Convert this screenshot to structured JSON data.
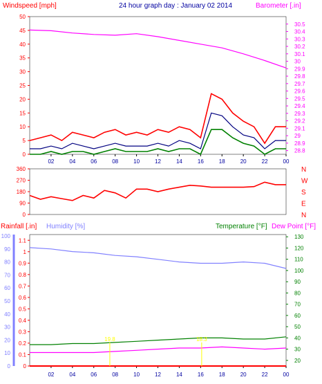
{
  "chart_data": [
    {
      "type": "line",
      "title": "24 hour graph day : January 02 2014",
      "ylabel_left": "Windspeed [mph]",
      "ylabel_right": "Barometer [.in]",
      "x_ticks": [
        "02",
        "04",
        "06",
        "08",
        "10",
        "12",
        "14",
        "16",
        "18",
        "20",
        "22",
        "00"
      ],
      "y_left_ticks": [
        "0",
        "5",
        "10",
        "15",
        "20",
        "25",
        "30",
        "35",
        "40",
        "45",
        "50"
      ],
      "y_right_ticks": [
        "28.8",
        "28.9",
        "29",
        "29.1",
        "29.2",
        "29.3",
        "29.4",
        "29.5",
        "29.6",
        "29.7",
        "29.8",
        "29.9",
        "30",
        "30.1",
        "30.2",
        "30.3",
        "30.4",
        "30.5"
      ],
      "ylim_left": [
        0,
        50
      ],
      "ylim_right": [
        28.75,
        30.6
      ],
      "colors": {
        "gust": "#ff0000",
        "average": "#000080",
        "lull": "#008000",
        "barometer": "#ff00ff"
      },
      "series": [
        {
          "x": [
            0,
            1,
            2,
            3,
            4,
            5,
            6,
            7,
            8,
            9,
            10,
            11,
            12,
            13,
            14,
            15,
            16,
            17,
            18,
            19,
            20,
            21,
            22,
            23,
            24
          ],
          "values": [
            5,
            6,
            7,
            5,
            8,
            7,
            6,
            8,
            9,
            7,
            8,
            7,
            9,
            8,
            10,
            9,
            6,
            22,
            20,
            15,
            12,
            10,
            4,
            10,
            10
          ]
        },
        {
          "x": [
            0,
            1,
            2,
            3,
            4,
            5,
            6,
            7,
            8,
            9,
            10,
            11,
            12,
            13,
            14,
            15,
            16,
            17,
            18,
            19,
            20,
            21,
            22,
            23,
            24
          ],
          "values": [
            2,
            2,
            3,
            2,
            4,
            3,
            2,
            3,
            4,
            3,
            3,
            3,
            4,
            3,
            5,
            4,
            2,
            15,
            14,
            10,
            7,
            6,
            2,
            5,
            5
          ]
        },
        {
          "x": [
            0,
            1,
            2,
            3,
            4,
            5,
            6,
            7,
            8,
            9,
            10,
            11,
            12,
            13,
            14,
            15,
            16,
            17,
            18,
            19,
            20,
            21,
            22,
            23,
            24
          ],
          "values": [
            0,
            0,
            1,
            0,
            1,
            1,
            0,
            1,
            2,
            1,
            1,
            1,
            2,
            1,
            2,
            2,
            0,
            9,
            9,
            6,
            4,
            3,
            0,
            2,
            2
          ]
        },
        {
          "x": [
            0,
            2,
            4,
            6,
            8,
            10,
            12,
            14,
            16,
            18,
            20,
            22,
            24
          ],
          "values": [
            30.42,
            30.41,
            30.38,
            30.36,
            30.35,
            30.37,
            30.33,
            30.28,
            30.23,
            30.18,
            30.1,
            30.01,
            29.91
          ]
        }
      ]
    },
    {
      "type": "line",
      "ylabel_right": "N W S E N",
      "y_left_ticks": [
        "360",
        "270",
        "180",
        "90",
        "0"
      ],
      "ylim": [
        0,
        360
      ],
      "colors": {
        "direction": "#ff0000"
      },
      "series": [
        {
          "x": [
            0,
            1,
            2,
            3,
            4,
            5,
            6,
            7,
            8,
            9,
            10,
            11,
            12,
            13,
            14,
            15,
            16,
            17,
            18,
            19,
            20,
            21,
            22,
            23,
            24
          ],
          "values": [
            150,
            120,
            140,
            125,
            110,
            150,
            130,
            190,
            170,
            130,
            200,
            200,
            180,
            200,
            215,
            230,
            225,
            215,
            215,
            215,
            215,
            220,
            255,
            235,
            235
          ]
        }
      ]
    },
    {
      "type": "line",
      "ylabel_left_1": "Rainfall [.in]",
      "ylabel_left_2": "Humidity [%]",
      "ylabel_right_1": "Temperature [°F]",
      "ylabel_right_2": "Dew Point [°F]",
      "x_ticks": [
        "02",
        "04",
        "06",
        "08",
        "10",
        "12",
        "14",
        "16",
        "18",
        "20",
        "22",
        "00"
      ],
      "rain_ticks": [
        "0",
        "0.1",
        "0.2",
        "0.3",
        "0.4",
        "0.5",
        "0.6",
        "0.7",
        "0.8",
        "0.9",
        "1",
        "1.1"
      ],
      "humidity_ticks": [
        "0",
        "10",
        "20",
        "30",
        "40",
        "50",
        "60",
        "70",
        "80",
        "90",
        "100"
      ],
      "temp_ticks": [
        "20",
        "30",
        "40",
        "50",
        "60",
        "70",
        "80",
        "90",
        "100",
        "110",
        "120",
        "130"
      ],
      "colors": {
        "rainfall": "#ff0000",
        "humidity": "#8080ff",
        "temperature": "#008000",
        "dewpoint": "#ff00ff",
        "annotation": "#ffff00"
      },
      "annotations": [
        "19.8",
        "18.3"
      ],
      "series": [
        {
          "x": [
            0,
            2,
            4,
            6,
            8,
            10,
            12,
            14,
            16,
            18,
            20,
            22,
            24
          ],
          "values": [
            0,
            0,
            0,
            0,
            0,
            0,
            0,
            0,
            0,
            0,
            0,
            0,
            0
          ]
        },
        {
          "x": [
            0,
            2,
            4,
            6,
            8,
            10,
            12,
            14,
            16,
            18,
            20,
            22,
            24
          ],
          "values": [
            91,
            90,
            88,
            87,
            85,
            84,
            82,
            80,
            79,
            79,
            80,
            79,
            75
          ]
        },
        {
          "x": [
            0,
            2,
            4,
            6,
            8,
            10,
            12,
            14,
            16,
            18,
            20,
            22,
            24
          ],
          "values": [
            34,
            34,
            35,
            35,
            36,
            37,
            38,
            39,
            40,
            40,
            39,
            39,
            41
          ]
        },
        {
          "x": [
            0,
            2,
            4,
            6,
            8,
            10,
            12,
            14,
            16,
            18,
            20,
            22,
            24
          ],
          "values": [
            27,
            27,
            27,
            27,
            28,
            29,
            30,
            31,
            31,
            32,
            31,
            30,
            31
          ]
        }
      ]
    }
  ]
}
